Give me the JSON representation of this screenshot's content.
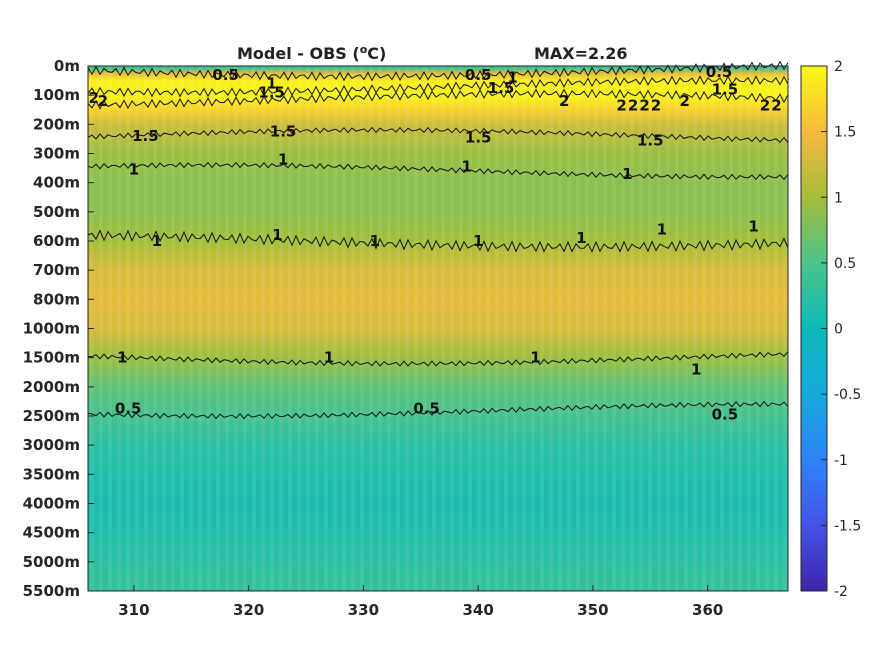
{
  "chart_data": {
    "type": "heatmap",
    "title": "Model - OBS (",
    "title_superscript": "o",
    "title_suffix": "C)",
    "max_label": "MAX=2.26",
    "x": {
      "ticks": [
        310,
        320,
        330,
        340,
        350,
        360
      ],
      "tick_labels": [
        "310",
        "320",
        "330",
        "340",
        "350",
        "360"
      ],
      "range": [
        306,
        367
      ]
    },
    "y": {
      "tick_labels": [
        "0m",
        "100m",
        "200m",
        "300m",
        "400m",
        "500m",
        "600m",
        "700m",
        "800m",
        "1000m",
        "1500m",
        "2000m",
        "2500m",
        "3000m",
        "3500m",
        "4000m",
        "4500m",
        "5000m",
        "5500m"
      ],
      "scale": "categorical-depth-levels"
    },
    "colorbar": {
      "range": [
        -2,
        2
      ],
      "ticks": [
        2,
        1.5,
        1,
        0.5,
        0,
        -0.5,
        -1,
        -1.5,
        -2
      ],
      "tick_labels": [
        "2",
        "1.5",
        "1",
        "0.5",
        "0",
        "-0.5",
        "-1",
        "-1.5",
        "-2"
      ],
      "colormap": "parula"
    },
    "depth_profile": {
      "levels": [
        0,
        0.12,
        0.25,
        0.5,
        1,
        1.5,
        2,
        3,
        4,
        5,
        6,
        7,
        8,
        9,
        10,
        11,
        12,
        13,
        14,
        15,
        16,
        17,
        18
      ],
      "values": [
        0.15,
        0.6,
        1.4,
        1.9,
        1.95,
        1.7,
        1.25,
        0.95,
        0.85,
        0.85,
        1.0,
        1.3,
        1.4,
        1.3,
        0.95,
        0.6,
        0.45,
        0.25,
        0.15,
        0.12,
        0.15,
        0.25,
        0.3
      ]
    },
    "contours": [
      {
        "label": "0.5",
        "approx_level": 0.15
      },
      {
        "label": "1.5",
        "approx_level": 0.7
      },
      {
        "label": "2",
        "approx_level": 1.15
      },
      {
        "label": "1.5",
        "approx_level": 2.4
      },
      {
        "label": "1",
        "approx_level": 3.6
      },
      {
        "label": "1",
        "approx_level": 6.0
      },
      {
        "label": "1",
        "approx_level": 10.0
      },
      {
        "label": "0.5",
        "approx_level": 11.8
      }
    ],
    "contour_labels": [
      {
        "text": "0.5",
        "x": 318,
        "level": 0.3
      },
      {
        "text": "1",
        "x": 322,
        "level": 0.6
      },
      {
        "text": "1.5",
        "x": 322,
        "level": 0.9
      },
      {
        "text": "0.5",
        "x": 340,
        "level": 0.3
      },
      {
        "text": "1",
        "x": 343,
        "level": 0.4
      },
      {
        "text": "1.5",
        "x": 342,
        "level": 0.75
      },
      {
        "text": "0.5",
        "x": 361,
        "level": 0.2
      },
      {
        "text": "1.5",
        "x": 361.5,
        "level": 0.8
      },
      {
        "text": "2",
        "x": 306.5,
        "level": 1.1
      },
      {
        "text": "2",
        "x": 307.3,
        "level": 1.2
      },
      {
        "text": "2",
        "x": 347.5,
        "level": 1.2
      },
      {
        "text": "2",
        "x": 352.5,
        "level": 1.35
      },
      {
        "text": "2",
        "x": 353.5,
        "level": 1.35
      },
      {
        "text": "2",
        "x": 354.5,
        "level": 1.35
      },
      {
        "text": "2",
        "x": 355.5,
        "level": 1.35
      },
      {
        "text": "2",
        "x": 358,
        "level": 1.2
      },
      {
        "text": "2",
        "x": 365,
        "level": 1.35
      },
      {
        "text": "2",
        "x": 366,
        "level": 1.35
      },
      {
        "text": "1.5",
        "x": 311,
        "level": 2.4
      },
      {
        "text": "1.5",
        "x": 323,
        "level": 2.25
      },
      {
        "text": "1.5",
        "x": 340,
        "level": 2.45
      },
      {
        "text": "1.5",
        "x": 355,
        "level": 2.55
      },
      {
        "text": "1",
        "x": 310,
        "level": 3.55
      },
      {
        "text": "1",
        "x": 323,
        "level": 3.2
      },
      {
        "text": "1",
        "x": 339,
        "level": 3.45
      },
      {
        "text": "1",
        "x": 353,
        "level": 3.7
      },
      {
        "text": "1",
        "x": 312,
        "level": 6.0
      },
      {
        "text": "1",
        "x": 322.5,
        "level": 5.8
      },
      {
        "text": "1",
        "x": 331,
        "level": 6.0
      },
      {
        "text": "1",
        "x": 340,
        "level": 6.0
      },
      {
        "text": "1",
        "x": 349,
        "level": 5.9
      },
      {
        "text": "1",
        "x": 356,
        "level": 5.6
      },
      {
        "text": "1",
        "x": 364,
        "level": 5.5
      },
      {
        "text": "1",
        "x": 309,
        "level": 10.0
      },
      {
        "text": "1",
        "x": 327,
        "level": 10.0
      },
      {
        "text": "1",
        "x": 345,
        "level": 10.0
      },
      {
        "text": "1",
        "x": 359,
        "level": 10.4
      },
      {
        "text": "0.5",
        "x": 309.5,
        "level": 11.75
      },
      {
        "text": "0.5",
        "x": 335.5,
        "level": 11.75
      },
      {
        "text": "0.5",
        "x": 361.5,
        "level": 11.95
      }
    ]
  }
}
